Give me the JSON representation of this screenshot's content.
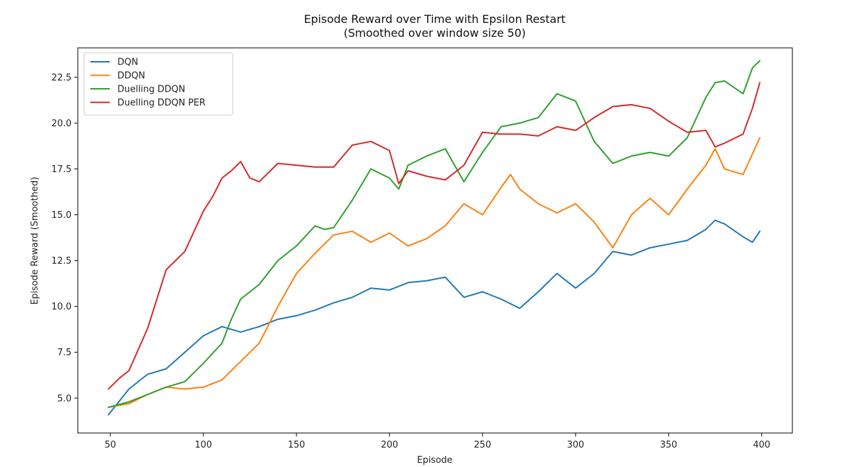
{
  "chart_data": {
    "type": "line",
    "title": "Episode Reward over Time with Epsilon Restart",
    "subtitle": "(Smoothed over window size 50)",
    "xlabel": "Episode",
    "ylabel": "Episode Reward (Smoothed)",
    "xlim": [
      32.5,
      416.5
    ],
    "ylim": [
      3.1,
      24.1
    ],
    "xticks": [
      50,
      100,
      150,
      200,
      250,
      300,
      350,
      400
    ],
    "yticks": [
      5.0,
      7.5,
      10.0,
      12.5,
      15.0,
      17.5,
      20.0,
      22.5
    ],
    "xtick_labels": [
      "50",
      "100",
      "150",
      "200",
      "250",
      "300",
      "350",
      "400"
    ],
    "ytick_labels": [
      "5.0",
      "7.5",
      "10.0",
      "12.5",
      "15.0",
      "17.5",
      "20.0",
      "22.5"
    ],
    "grid": false,
    "legend_position": "top-left",
    "series": [
      {
        "name": "DQN",
        "color": "#1f77b4",
        "x": [
          49,
          60,
          70,
          80,
          90,
          100,
          110,
          120,
          130,
          140,
          150,
          160,
          170,
          180,
          190,
          200,
          210,
          220,
          230,
          240,
          250,
          260,
          270,
          280,
          290,
          300,
          310,
          320,
          330,
          340,
          350,
          360,
          370,
          375,
          380,
          390,
          395,
          399
        ],
        "y": [
          4.1,
          5.5,
          6.3,
          6.6,
          7.5,
          8.4,
          8.9,
          8.6,
          8.9,
          9.3,
          9.5,
          9.8,
          10.2,
          10.5,
          11.0,
          10.9,
          11.3,
          11.4,
          11.6,
          10.5,
          10.8,
          10.4,
          9.9,
          10.8,
          11.8,
          11.0,
          11.8,
          13.0,
          12.8,
          13.2,
          13.4,
          13.6,
          14.2,
          14.7,
          14.5,
          13.8,
          13.5,
          14.1
        ]
      },
      {
        "name": "DDQN",
        "color": "#ff7f0e",
        "x": [
          49,
          60,
          70,
          80,
          90,
          100,
          110,
          120,
          130,
          140,
          150,
          160,
          170,
          180,
          190,
          200,
          210,
          220,
          230,
          240,
          250,
          260,
          265,
          270,
          280,
          290,
          300,
          310,
          320,
          330,
          340,
          350,
          360,
          370,
          375,
          380,
          390,
          399
        ],
        "y": [
          4.5,
          4.7,
          5.2,
          5.6,
          5.5,
          5.6,
          6.0,
          7.0,
          8.0,
          10.0,
          11.8,
          12.9,
          13.9,
          14.1,
          13.5,
          14.0,
          13.3,
          13.7,
          14.4,
          15.6,
          15.0,
          16.5,
          17.2,
          16.4,
          15.6,
          15.1,
          15.6,
          14.6,
          13.2,
          15.0,
          15.9,
          15.0,
          16.4,
          17.7,
          18.6,
          17.5,
          17.2,
          19.2
        ]
      },
      {
        "name": "Duelling DDQN",
        "color": "#2ca02c",
        "x": [
          49,
          60,
          70,
          80,
          90,
          100,
          110,
          115,
          120,
          130,
          140,
          150,
          160,
          165,
          170,
          180,
          190,
          200,
          205,
          210,
          220,
          230,
          240,
          250,
          260,
          270,
          280,
          290,
          300,
          310,
          320,
          330,
          340,
          350,
          360,
          370,
          375,
          380,
          390,
          395,
          399
        ],
        "y": [
          4.5,
          4.8,
          5.2,
          5.6,
          5.9,
          6.9,
          8.0,
          9.3,
          10.4,
          11.2,
          12.5,
          13.3,
          14.4,
          14.2,
          14.3,
          15.8,
          17.5,
          17.0,
          16.4,
          17.7,
          18.2,
          18.6,
          16.8,
          18.4,
          19.8,
          20.0,
          20.3,
          21.6,
          21.2,
          19.0,
          17.8,
          18.2,
          18.4,
          18.2,
          19.2,
          21.4,
          22.2,
          22.3,
          21.6,
          23.0,
          23.4
        ]
      },
      {
        "name": "Duelling DDQN PER",
        "color": "#d62728",
        "x": [
          49,
          55,
          60,
          70,
          80,
          90,
          100,
          105,
          110,
          115,
          120,
          125,
          130,
          140,
          150,
          160,
          170,
          180,
          190,
          200,
          205,
          210,
          220,
          230,
          240,
          250,
          260,
          270,
          280,
          290,
          300,
          310,
          320,
          330,
          340,
          350,
          360,
          370,
          375,
          380,
          390,
          395,
          399
        ],
        "y": [
          5.5,
          6.1,
          6.5,
          8.8,
          12.0,
          13.0,
          15.2,
          16.0,
          17.0,
          17.4,
          17.9,
          17.0,
          16.8,
          17.8,
          17.7,
          17.6,
          17.6,
          18.8,
          19.0,
          18.5,
          16.7,
          17.4,
          17.1,
          16.9,
          17.7,
          19.5,
          19.4,
          19.4,
          19.3,
          19.8,
          19.6,
          20.3,
          20.9,
          21.0,
          20.8,
          20.1,
          19.5,
          19.6,
          18.7,
          18.9,
          19.4,
          20.8,
          22.2
        ]
      }
    ]
  }
}
